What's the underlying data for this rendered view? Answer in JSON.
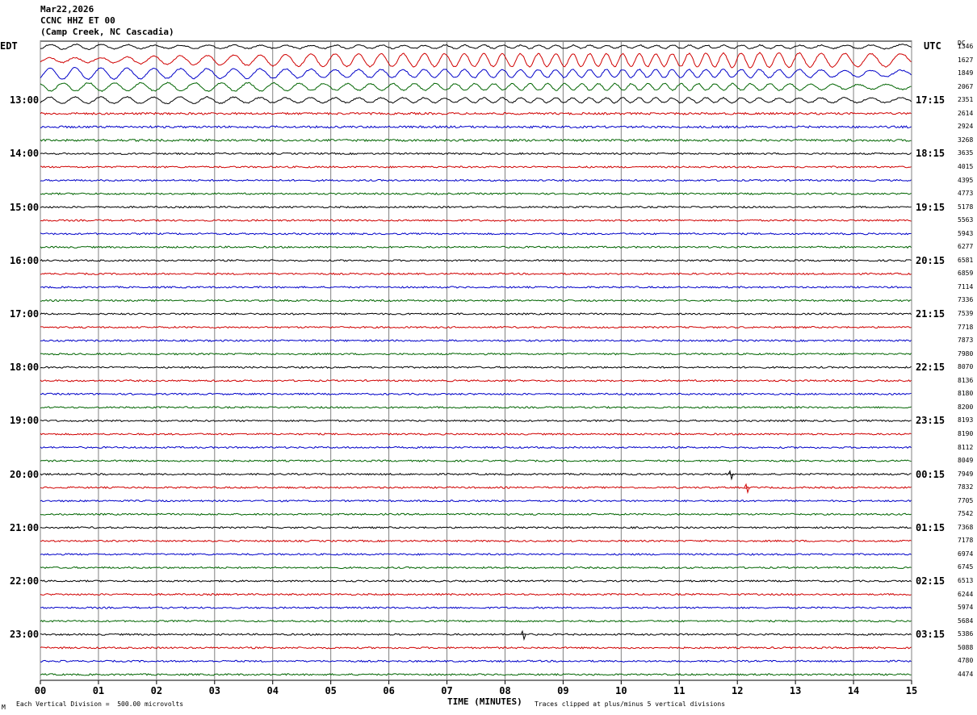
{
  "header": {
    "date": "Mar22,2026",
    "station": "CCNC HHZ ET 00",
    "location": "(Camp Creek, NC Cascadia)"
  },
  "left_axis_title": "EDT",
  "right_axis_title": "UTC",
  "dc_title": "DC",
  "footer": {
    "scale": "Each Vertical Division =  500.00 microvolts",
    "clip": "Traces clipped at plus/minus 5 vertical divisions",
    "corner_mark": "M"
  },
  "colors": {
    "trace_cycle": [
      "#000000",
      "#d00000",
      "#0000c8",
      "#006400"
    ],
    "grid": "#808080",
    "background": "#ffffff"
  },
  "chart_data": {
    "type": "line",
    "title": "CCNC HHZ ET 00",
    "xlabel": "TIME (MINUTES)",
    "ylabel": "",
    "x_ticks": [
      "00",
      "01",
      "02",
      "03",
      "04",
      "05",
      "06",
      "07",
      "08",
      "09",
      "10",
      "11",
      "12",
      "13",
      "14",
      "15"
    ],
    "xlim": [
      0,
      15
    ],
    "left_time_labels": [
      "13:00",
      "14:00",
      "15:00",
      "16:00",
      "17:00",
      "18:00",
      "19:00",
      "20:00",
      "21:00",
      "22:00",
      "23:00"
    ],
    "right_time_labels": [
      "17:15",
      "18:15",
      "19:15",
      "20:15",
      "21:15",
      "22:15",
      "23:15",
      "00:15",
      "01:15",
      "02:15",
      "03:15"
    ],
    "dc_offsets": [
      1346,
      1627,
      1849,
      2067,
      2351,
      2614,
      2924,
      3268,
      3635,
      4015,
      4395,
      4773,
      5178,
      5563,
      5943,
      6277,
      6581,
      6859,
      7114,
      7336,
      7539,
      7718,
      7873,
      7980,
      8070,
      8136,
      8180,
      8200,
      8193,
      8190,
      8112,
      8049,
      7949,
      7832,
      7705,
      7542,
      7368,
      7178,
      6974,
      6745,
      6513,
      6244,
      5974,
      5684,
      5386,
      5088,
      4780,
      4474
    ],
    "series": [
      {
        "values": [
          3,
          3,
          2,
          2,
          2,
          2,
          2,
          2,
          2,
          2,
          2,
          2,
          2,
          2,
          2,
          3
        ]
      },
      {
        "values": [
          3,
          3,
          5,
          6,
          7,
          8,
          8,
          8,
          8,
          8,
          8,
          8,
          9,
          9,
          8,
          8
        ]
      },
      {
        "values": [
          7,
          7,
          6,
          6,
          6,
          5,
          5,
          5,
          5,
          5,
          5,
          5,
          5,
          5,
          4,
          4
        ]
      },
      {
        "values": [
          5,
          5,
          5,
          5,
          5,
          4,
          4,
          4,
          4,
          4,
          4,
          4,
          4,
          4,
          3,
          3
        ]
      },
      {
        "values": [
          4,
          4,
          4,
          4,
          3,
          3,
          3,
          3,
          3,
          3,
          3,
          3,
          3,
          3,
          3,
          3
        ]
      },
      {
        "values": [
          2,
          2,
          2,
          2,
          2,
          2,
          2,
          2,
          2,
          2,
          2,
          2,
          2,
          2,
          2,
          2
        ]
      },
      {
        "values": [
          2,
          2,
          2,
          2,
          2,
          2,
          2,
          2,
          2,
          2,
          2,
          2,
          2,
          2,
          2,
          2
        ]
      },
      {
        "values": [
          2,
          2,
          2,
          2,
          2,
          2,
          2,
          2,
          2,
          2,
          2,
          2,
          2,
          2,
          2,
          2
        ]
      }
    ]
  }
}
